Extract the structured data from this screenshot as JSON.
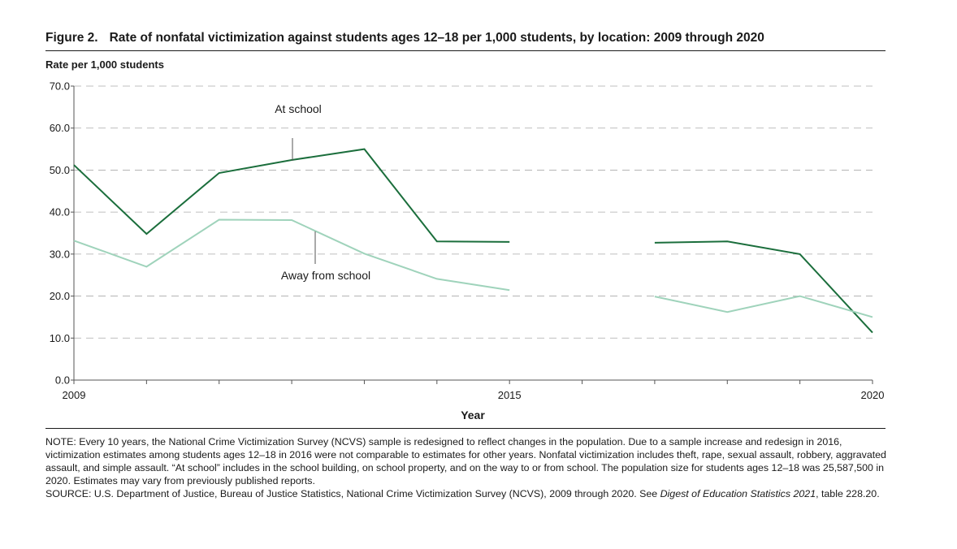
{
  "figure": {
    "number": "Figure 2.",
    "title": "Rate of nonfatal victimization against students ages 12–18 per 1,000 students, by location: 2009 through 2020"
  },
  "colors": {
    "at_school": "#1b6e3c",
    "away_from_school": "#9fd3bb",
    "grid": "#aaaaaa",
    "axis": "#555555"
  },
  "chart_data": {
    "type": "line",
    "title": "Rate of nonfatal victimization against students ages 12–18 per 1,000 students, by location: 2009 through 2020",
    "ylabel": "Rate per 1,000 students",
    "xlabel": "Year",
    "ylim": [
      0,
      70
    ],
    "yticks": [
      "0.0",
      "10.0",
      "20.0",
      "30.0",
      "40.0",
      "50.0",
      "60.0",
      "70.0"
    ],
    "xlim": [
      2009,
      2020
    ],
    "xtick_labels": [
      "2009",
      "2015",
      "2020"
    ],
    "grid": true,
    "series": [
      {
        "name": "At school",
        "points": [
          [
            2009,
            51.2
          ],
          [
            2010,
            34.8
          ],
          [
            2011,
            49.3
          ],
          [
            2012,
            52.4
          ],
          [
            2013,
            55.0
          ],
          [
            2014,
            33.0
          ],
          [
            2015,
            32.9
          ],
          [
            2016,
            null
          ],
          [
            2017,
            32.7
          ],
          [
            2018,
            33.0
          ],
          [
            2019,
            30.0
          ],
          [
            2020,
            11.3
          ]
        ]
      },
      {
        "name": "Away from school",
        "points": [
          [
            2009,
            33.2
          ],
          [
            2010,
            27.0
          ],
          [
            2011,
            38.2
          ],
          [
            2012,
            38.1
          ],
          [
            2013,
            30.1
          ],
          [
            2014,
            24.1
          ],
          [
            2015,
            21.4
          ],
          [
            2016,
            null
          ],
          [
            2017,
            19.9
          ],
          [
            2018,
            16.2
          ],
          [
            2019,
            20.0
          ],
          [
            2020,
            15.0
          ]
        ]
      }
    ]
  },
  "note": {
    "text": "NOTE: Every 10 years, the National Crime Victimization Survey (NCVS) sample is redesigned to reflect changes in the population. Due to a sample increase and redesign in 2016, victimization estimates among students ages 12–18 in 2016 were not comparable to estimates for other years. Nonfatal victimization includes theft, rape, sexual assault, robbery, aggravated assault, and simple assault. “At school” includes in the school building, on school property, and on the way to or from school. The population size for students ages 12–18 was 25,587,500 in 2020. Estimates may vary from previously published reports.",
    "source_prefix": "SOURCE: U.S. Department of Justice, Bureau of Justice Statistics, National Crime Victimization Survey (NCVS), 2009 through 2020. See ",
    "source_italic": "Digest of Education Statistics 2021",
    "source_suffix": ", table 228.20."
  }
}
